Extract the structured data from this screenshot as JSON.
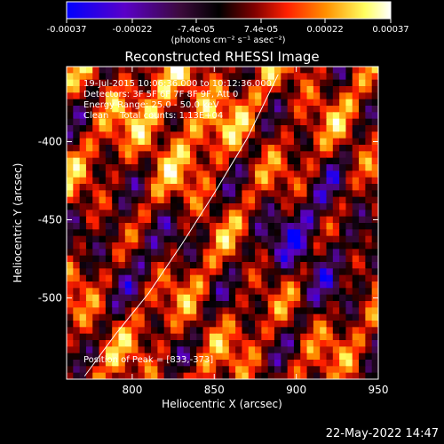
{
  "chart_data": {
    "type": "heatmap",
    "title": "Reconstructed RHESSI Image",
    "xlabel": "Heliocentric X (arcsec)",
    "ylabel": "Heliocentric Y (arcsec)",
    "xlim": [
      760,
      950
    ],
    "ylim": [
      -552,
      -352
    ],
    "xticks": [
      800,
      850,
      900,
      950
    ],
    "yticks": [
      -400,
      -450,
      -500
    ],
    "colorbar": {
      "ticks": [
        "-0.00037",
        "-0.00022",
        "-7.4e-05",
        "7.4e-05",
        "0.00022",
        "0.00037"
      ],
      "range": [
        -0.00037,
        0.00037
      ],
      "units_label": "(photons cm⁻² s⁻¹ asec⁻²)",
      "colormap": [
        "#0000ff",
        "#5a00c8",
        "#3c0a3c",
        "#000000",
        "#800000",
        "#ff2000",
        "#ff9000",
        "#ffff60",
        "#ffffff"
      ]
    },
    "annotations": [
      "19-Jul-2015 10:06:36.000 to 10:12:36.000",
      "Detectors: 3F 5F 6F 7F 8F 9F, Att 0",
      "Energy Range: 25.0 - 50.0 keV",
      "Clean    Total counts: 1.13E+04"
    ],
    "peak_label": "Position of Peak = [833,-373]",
    "limb_curve": {
      "x": [
        771,
        790,
        810,
        830,
        850,
        870,
        889
      ],
      "y": [
        -550,
        -523,
        -497,
        -466,
        -433,
        -398,
        -357
      ]
    }
  },
  "timestamp": "22-May-2022 14:47"
}
